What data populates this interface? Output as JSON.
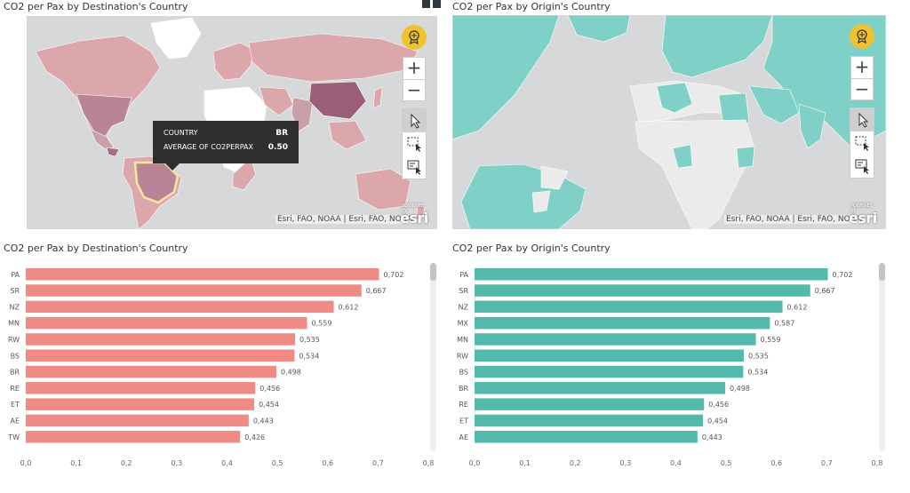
{
  "colors": {
    "dest": "#ef8a85",
    "origin": "#52b9ab",
    "map_bg": "#d7d8d9",
    "dest_land": "#dba7ab",
    "origin_land": "#7fd1c7"
  },
  "maps": {
    "left": {
      "title": "CO2 per Pax by Destination's Country",
      "attribution": "Esri, FAO, NOAA | Esri, FAO, NOAA",
      "logo": "esri",
      "logo_sub": "POWERED BY",
      "zoom_in": "+",
      "zoom_out": "−",
      "tooltip": {
        "label1": "COUNTRY",
        "value1": "BR",
        "label2": "AVERAGE OF CO2PERPAX",
        "value2": "0.50"
      }
    },
    "right": {
      "title": "CO2 per Pax by Origin's Country",
      "attribution": "Esri, FAO, NOAA | Esri, FAO, NOAA",
      "logo": "esri",
      "logo_sub": "POWERED BY",
      "zoom_in": "+",
      "zoom_out": "−"
    }
  },
  "chart_data": [
    {
      "type": "bar",
      "orientation": "horizontal",
      "title": "CO2 per Pax by Destination's Country",
      "categories": [
        "PA",
        "SR",
        "NZ",
        "MN",
        "RW",
        "BS",
        "BR",
        "RE",
        "ET",
        "AE",
        "TW"
      ],
      "values": [
        0.702,
        0.667,
        0.612,
        0.559,
        0.535,
        0.534,
        0.498,
        0.456,
        0.454,
        0.443,
        0.426
      ],
      "labels": [
        "0,702",
        "0,667",
        "0,612",
        "0,559",
        "0,535",
        "0,534",
        "0,498",
        "0,456",
        "0,454",
        "0,443",
        "0,426"
      ],
      "xlim": [
        0,
        0.8
      ],
      "ticks": [
        "0,0",
        "0,1",
        "0,2",
        "0,3",
        "0,4",
        "0,5",
        "0,6",
        "0,7",
        "0,8"
      ],
      "color": "#ef8a85"
    },
    {
      "type": "bar",
      "orientation": "horizontal",
      "title": "CO2 per Pax by Origin's Country",
      "categories": [
        "PA",
        "SR",
        "NZ",
        "MX",
        "MN",
        "RW",
        "BS",
        "BR",
        "RE",
        "ET",
        "AE"
      ],
      "values": [
        0.702,
        0.667,
        0.612,
        0.587,
        0.559,
        0.535,
        0.534,
        0.498,
        0.456,
        0.454,
        0.443
      ],
      "labels": [
        "0,702",
        "0,667",
        "0,612",
        "0,587",
        "0,559",
        "0,535",
        "0,534",
        "0,498",
        "0,456",
        "0,454",
        "0,443"
      ],
      "xlim": [
        0,
        0.8
      ],
      "ticks": [
        "0,0",
        "0,1",
        "0,2",
        "0,3",
        "0,4",
        "0,5",
        "0,6",
        "0,7",
        "0,8"
      ],
      "color": "#52b9ab"
    }
  ]
}
